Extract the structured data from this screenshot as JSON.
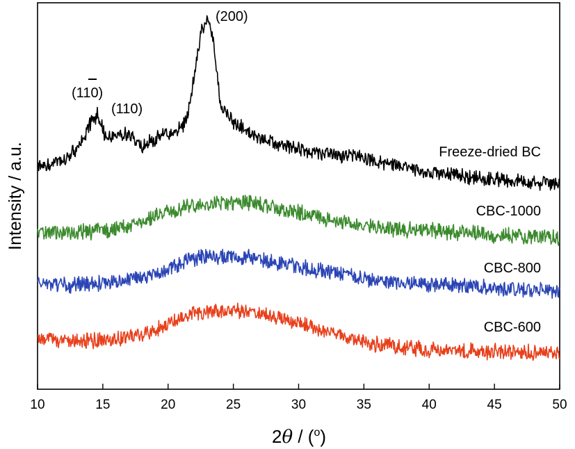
{
  "chart_data": {
    "type": "line",
    "xlabel": {
      "pre": "2",
      "theta": "θ",
      "post": " / (",
      "sup": "o",
      "close": ")"
    },
    "ylabel": "Intensity / a.u.",
    "xlim": [
      10,
      50
    ],
    "xticks": [
      10,
      15,
      20,
      25,
      30,
      35,
      40,
      45,
      50
    ],
    "y_ticks_shown": false,
    "grid": false,
    "series": [
      {
        "name": "Freeze-dried BC",
        "color": "#000000",
        "noise": 9,
        "seed": 11,
        "points": [
          [
            10,
            240
          ],
          [
            11,
            238
          ],
          [
            12,
            230
          ],
          [
            13,
            215
          ],
          [
            14,
            180
          ],
          [
            14.6,
            165
          ],
          [
            15.3,
            200
          ],
          [
            16,
            190
          ],
          [
            17,
            195
          ],
          [
            18,
            210
          ],
          [
            19,
            200
          ],
          [
            20,
            192
          ],
          [
            21,
            185
          ],
          [
            21.5,
            165
          ],
          [
            22,
            110
          ],
          [
            22.5,
            45
          ],
          [
            23,
            25
          ],
          [
            23.5,
            60
          ],
          [
            24,
            150
          ],
          [
            25,
            175
          ],
          [
            27,
            200
          ],
          [
            30,
            215
          ],
          [
            35,
            228
          ],
          [
            40,
            248
          ],
          [
            45,
            258
          ],
          [
            50,
            265
          ]
        ]
      },
      {
        "name": "CBC-1000",
        "color": "#3c8a2e",
        "noise": 10,
        "seed": 23,
        "points": [
          [
            10,
            335
          ],
          [
            12,
            336
          ],
          [
            14,
            333
          ],
          [
            16,
            330
          ],
          [
            18,
            320
          ],
          [
            20,
            305
          ],
          [
            22,
            295
          ],
          [
            24,
            292
          ],
          [
            26,
            290
          ],
          [
            28,
            297
          ],
          [
            30,
            305
          ],
          [
            32,
            315
          ],
          [
            34,
            322
          ],
          [
            36,
            328
          ],
          [
            40,
            332
          ],
          [
            45,
            338
          ],
          [
            50,
            342
          ]
        ]
      },
      {
        "name": "CBC-800",
        "color": "#2b45b5",
        "noise": 10,
        "seed": 37,
        "points": [
          [
            10,
            410
          ],
          [
            13,
            410
          ],
          [
            16,
            405
          ],
          [
            18,
            398
          ],
          [
            20,
            388
          ],
          [
            22,
            372
          ],
          [
            24,
            368
          ],
          [
            26,
            370
          ],
          [
            28,
            376
          ],
          [
            30,
            384
          ],
          [
            32,
            390
          ],
          [
            34,
            397
          ],
          [
            36,
            404
          ],
          [
            40,
            410
          ],
          [
            45,
            414
          ],
          [
            50,
            418
          ]
        ]
      },
      {
        "name": "CBC-600",
        "color": "#e8401c",
        "noise": 10,
        "seed": 53,
        "points": [
          [
            10,
            490
          ],
          [
            13,
            490
          ],
          [
            16,
            488
          ],
          [
            18,
            482
          ],
          [
            20,
            466
          ],
          [
            22,
            452
          ],
          [
            24,
            448
          ],
          [
            26,
            447
          ],
          [
            28,
            455
          ],
          [
            30,
            464
          ],
          [
            32,
            478
          ],
          [
            34,
            488
          ],
          [
            36,
            496
          ],
          [
            40,
            503
          ],
          [
            45,
            506
          ],
          [
            50,
            508
          ]
        ]
      }
    ],
    "annotations": [
      {
        "text": "Freeze-dried BC"
      },
      {
        "text": "CBC-1000"
      },
      {
        "text": "CBC-800"
      },
      {
        "text": "CBC-600"
      }
    ],
    "peak_labels": [
      {
        "pre": "(1",
        "bar": "1",
        "post": "0)"
      },
      {
        "text": "(110)"
      },
      {
        "text": "(200)"
      }
    ]
  }
}
